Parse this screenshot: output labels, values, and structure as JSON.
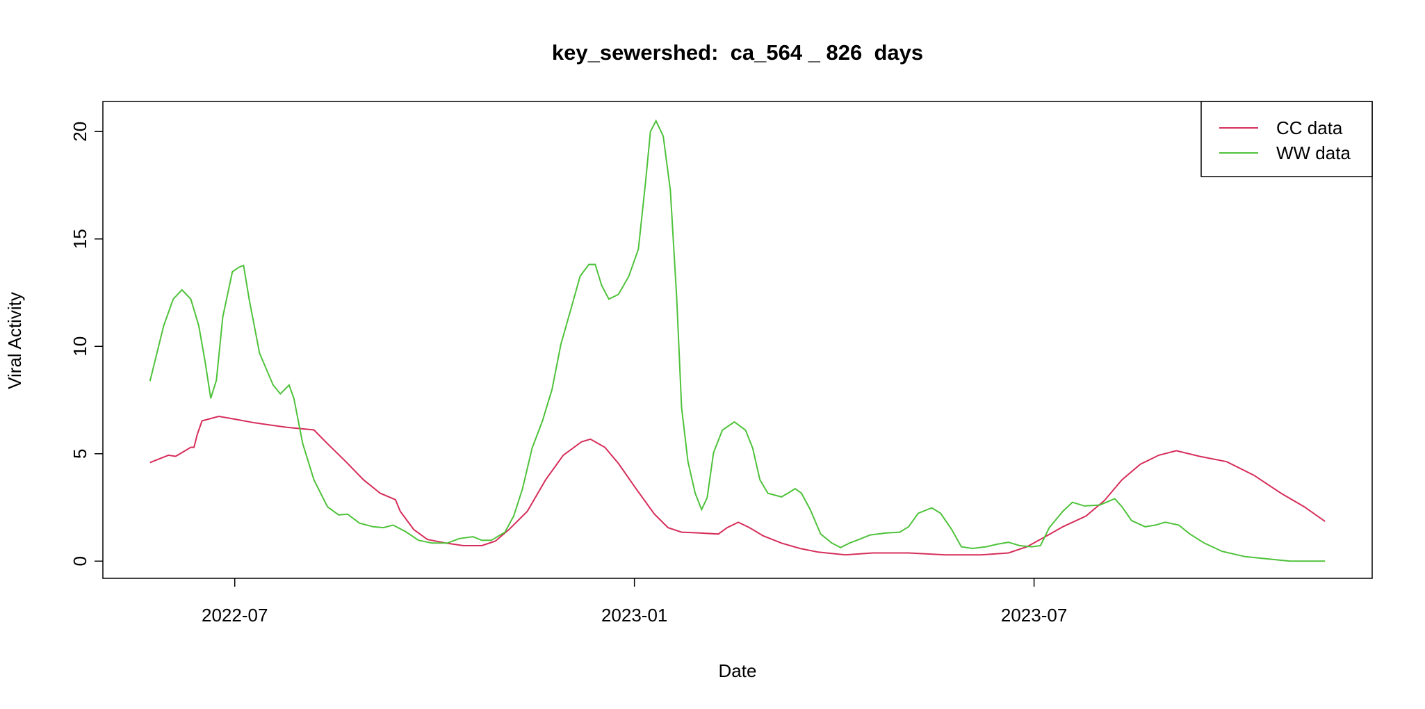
{
  "chart_data": {
    "type": "line",
    "title": "key_sewershed:  ca_564 _ 826  days",
    "x_label": "Date",
    "y_label": "Viral Activity",
    "xlim": [
      2022.335,
      2023.923
    ],
    "ylim": [
      -0.8,
      21.4
    ],
    "xticks": [
      {
        "value": 2022.5,
        "label": "2022-07"
      },
      {
        "value": 2023,
        "label": "2023-01"
      },
      {
        "value": 2023.5,
        "label": "2023-07"
      }
    ],
    "yticks": [
      0,
      5,
      10,
      15,
      20
    ],
    "legend": "top-right",
    "series": [
      {
        "name": "CC data",
        "color": "#d62d5a",
        "x": [
          2022.394,
          2022.417,
          2022.426,
          2022.438,
          2022.445,
          2022.449,
          2022.453,
          2022.459,
          2022.48,
          2022.5,
          2022.525,
          2022.565,
          2022.599,
          2022.616,
          2022.639,
          2022.661,
          2022.682,
          2022.701,
          2022.707,
          2022.724,
          2022.741,
          2022.764,
          2022.786,
          2022.809,
          2022.826,
          2022.843,
          2022.866,
          2022.889,
          2022.911,
          2022.934,
          2022.945,
          2022.963,
          2022.98,
          2023.002,
          2023.025,
          2023.042,
          2023.059,
          2023.082,
          2023.105,
          2023.116,
          2023.13,
          2023.144,
          2023.161,
          2023.184,
          2023.207,
          2023.23,
          2023.264,
          2023.298,
          2023.343,
          2023.389,
          2023.434,
          2023.468,
          2023.491,
          2023.514,
          2023.536,
          2023.565,
          2023.588,
          2023.61,
          2023.633,
          2023.656,
          2023.678,
          2023.707,
          2023.741,
          2023.775,
          2023.809,
          2023.838,
          2023.864
        ],
        "values": [
          4.59,
          4.93,
          4.88,
          5.14,
          5.3,
          5.3,
          5.89,
          6.53,
          6.74,
          6.61,
          6.44,
          6.23,
          6.11,
          5.47,
          4.63,
          3.79,
          3.16,
          2.86,
          2.32,
          1.47,
          1.01,
          0.84,
          0.72,
          0.72,
          0.93,
          1.47,
          2.32,
          3.79,
          4.93,
          5.56,
          5.68,
          5.3,
          4.55,
          3.37,
          2.19,
          1.56,
          1.35,
          1.31,
          1.26,
          1.56,
          1.81,
          1.56,
          1.18,
          0.84,
          0.59,
          0.42,
          0.29,
          0.38,
          0.38,
          0.29,
          0.29,
          0.38,
          0.67,
          1.14,
          1.6,
          2.1,
          2.82,
          3.79,
          4.51,
          4.93,
          5.14,
          4.88,
          4.63,
          4.0,
          3.16,
          2.53,
          1.85
        ]
      },
      {
        "name": "WW data",
        "color": "#4ec23a",
        "x": [
          2022.394,
          2022.411,
          2022.423,
          2022.434,
          2022.445,
          2022.455,
          2022.463,
          2022.47,
          2022.477,
          2022.485,
          2022.497,
          2022.505,
          2022.511,
          2022.518,
          2022.531,
          2022.548,
          2022.557,
          2022.568,
          2022.574,
          2022.585,
          2022.599,
          2022.616,
          2022.63,
          2022.641,
          2022.656,
          2022.673,
          2022.686,
          2022.698,
          2022.713,
          2022.73,
          2022.747,
          2022.766,
          2022.781,
          2022.798,
          2022.809,
          2022.821,
          2022.838,
          2022.849,
          2022.86,
          2022.872,
          2022.885,
          2022.897,
          2022.908,
          2022.921,
          2022.932,
          2022.943,
          2022.951,
          2022.959,
          2022.968,
          2022.98,
          2022.993,
          2023.005,
          2023.014,
          2023.02,
          2023.027,
          2023.036,
          2023.045,
          2023.053,
          2023.059,
          2023.067,
          2023.076,
          2023.084,
          2023.091,
          2023.099,
          2023.11,
          2023.125,
          2023.139,
          2023.148,
          2023.157,
          2023.167,
          2023.184,
          2023.192,
          2023.201,
          2023.209,
          2023.22,
          2023.233,
          2023.247,
          2023.258,
          2023.269,
          2023.281,
          2023.295,
          2023.315,
          2023.332,
          2023.343,
          2023.355,
          2023.372,
          2023.383,
          2023.397,
          2023.409,
          2023.423,
          2023.44,
          2023.455,
          2023.468,
          2023.482,
          2023.497,
          2023.508,
          2023.519,
          2023.536,
          2023.548,
          2023.563,
          2023.582,
          2023.601,
          2023.61,
          2023.622,
          2023.639,
          2023.652,
          2023.664,
          2023.681,
          2023.695,
          2023.713,
          2023.735,
          2023.764,
          2023.798,
          2023.82,
          2023.864
        ],
        "values": [
          8.38,
          10.95,
          12.2,
          12.63,
          12.2,
          10.95,
          9.26,
          7.58,
          8.42,
          11.37,
          13.47,
          13.68,
          13.77,
          12.2,
          9.68,
          8.2,
          7.79,
          8.2,
          7.58,
          5.47,
          3.79,
          2.53,
          2.15,
          2.19,
          1.77,
          1.6,
          1.56,
          1.68,
          1.39,
          0.97,
          0.84,
          0.84,
          1.05,
          1.14,
          0.97,
          0.97,
          1.35,
          2.1,
          3.37,
          5.26,
          6.53,
          8.0,
          10.1,
          11.79,
          13.26,
          13.81,
          13.81,
          12.84,
          12.2,
          12.42,
          13.26,
          14.53,
          17.68,
          20.0,
          20.5,
          19.79,
          17.26,
          12.2,
          7.16,
          4.63,
          3.16,
          2.4,
          2.95,
          5.05,
          6.1,
          6.48,
          6.1,
          5.26,
          3.79,
          3.16,
          2.99,
          3.16,
          3.37,
          3.16,
          2.4,
          1.26,
          0.84,
          0.63,
          0.84,
          1.01,
          1.22,
          1.31,
          1.35,
          1.6,
          2.23,
          2.48,
          2.23,
          1.47,
          0.67,
          0.59,
          0.67,
          0.8,
          0.88,
          0.72,
          0.67,
          0.72,
          1.56,
          2.32,
          2.74,
          2.57,
          2.61,
          2.91,
          2.53,
          1.89,
          1.6,
          1.68,
          1.81,
          1.68,
          1.26,
          0.84,
          0.46,
          0.21,
          0.08,
          0,
          0
        ]
      }
    ]
  }
}
